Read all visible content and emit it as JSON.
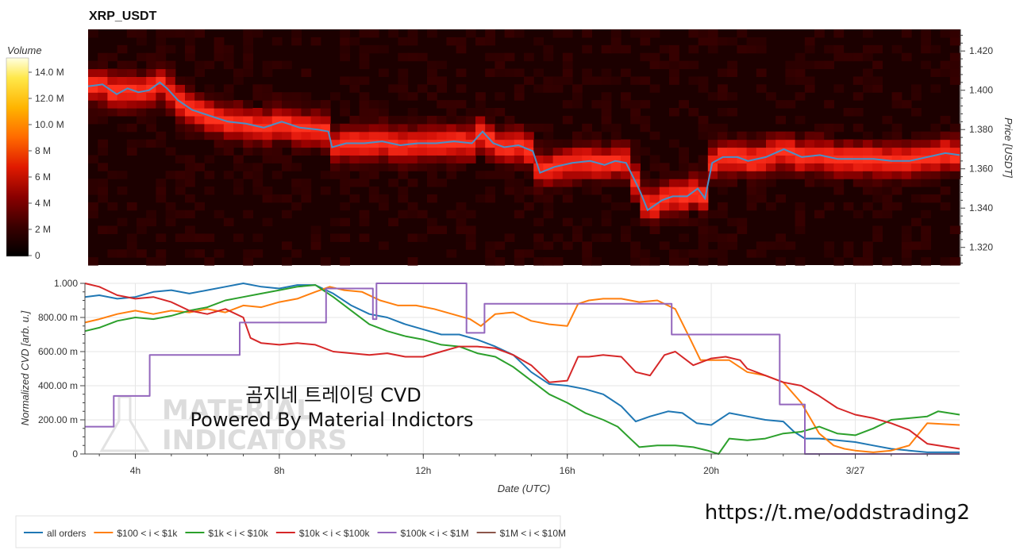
{
  "colors": {
    "price_line": "#4a90c8",
    "all_orders": "#1f77b4",
    "s100_1k": "#ff7f0e",
    "s1k_10k": "#2ca02c",
    "s10k_100k": "#d62728",
    "s100k_1M": "#9467bd",
    "s1M_10M": "#8c564b"
  },
  "chart_data": [
    {
      "type": "heatmap",
      "title": "XRP_USDT",
      "ylabel": "Price [USDT]",
      "ylim": [
        1.311,
        1.431
      ],
      "y_ticks": [
        "1.420",
        "1.400",
        "1.380",
        "1.360",
        "1.340",
        "1.320"
      ],
      "colorbar": {
        "title": "Volume",
        "range": [
          0,
          15000000
        ],
        "ticks": [
          "14.0 M",
          "12.0 M",
          "10.0 M",
          "8 M",
          "6 M",
          "4 M",
          "2 M",
          "0"
        ]
      },
      "price_series": {
        "hours": [
          2.6,
          3.0,
          3.4,
          3.7,
          4.0,
          4.3,
          4.6,
          4.8,
          5.1,
          5.5,
          6.0,
          6.5,
          7.0,
          7.5,
          8.0,
          8.5,
          9.0,
          9.3,
          9.4,
          9.8,
          10.3,
          10.8,
          11.3,
          11.8,
          12.3,
          12.8,
          13.3,
          13.6,
          13.9,
          14.2,
          14.6,
          15.0,
          15.2,
          15.6,
          16.1,
          16.6,
          17.0,
          17.3,
          17.6,
          17.9,
          18.0,
          18.2,
          18.6,
          18.9,
          19.3,
          19.6,
          19.8,
          20.0,
          20.3,
          20.7,
          21.0,
          21.5,
          22.0,
          22.5,
          23.0,
          23.5,
          24.0,
          24.5,
          25.0,
          25.5,
          26.0,
          26.5,
          26.9
        ],
        "price": [
          1.402,
          1.403,
          1.398,
          1.401,
          1.399,
          1.4,
          1.404,
          1.401,
          1.395,
          1.39,
          1.387,
          1.384,
          1.383,
          1.381,
          1.384,
          1.381,
          1.38,
          1.379,
          1.371,
          1.373,
          1.373,
          1.374,
          1.372,
          1.373,
          1.373,
          1.374,
          1.373,
          1.379,
          1.373,
          1.371,
          1.372,
          1.369,
          1.358,
          1.361,
          1.363,
          1.364,
          1.362,
          1.364,
          1.363,
          1.352,
          1.348,
          1.339,
          1.344,
          1.346,
          1.346,
          1.35,
          1.345,
          1.363,
          1.366,
          1.366,
          1.364,
          1.366,
          1.37,
          1.366,
          1.367,
          1.365,
          1.365,
          1.365,
          1.364,
          1.364,
          1.366,
          1.368,
          1.367
        ]
      }
    },
    {
      "type": "line",
      "xlabel": "Date (UTC)",
      "ylabel": "Normalized CVD [arb. u.]",
      "xlim": [
        2.6,
        26.9
      ],
      "ylim": [
        0,
        1
      ],
      "x_ticks": [
        {
          "value": 4,
          "label": "4h"
        },
        {
          "value": 8,
          "label": "8h"
        },
        {
          "value": 12,
          "label": "12h"
        },
        {
          "value": 16,
          "label": "16h"
        },
        {
          "value": 20,
          "label": "20h"
        },
        {
          "value": 24,
          "label": "3/27"
        }
      ],
      "y_ticks": [
        {
          "value": 1.0,
          "label": "1.000"
        },
        {
          "value": 0.8,
          "label": "800.00 m"
        },
        {
          "value": 0.6,
          "label": "600.00 m"
        },
        {
          "value": 0.4,
          "label": "400.00 m"
        },
        {
          "value": 0.2,
          "label": "200.00 m"
        },
        {
          "value": 0.0,
          "label": "0"
        }
      ],
      "series": [
        {
          "name": "all orders",
          "color_key": "all_orders",
          "x": [
            2.6,
            3.0,
            3.5,
            4.0,
            4.5,
            5.0,
            5.5,
            6.0,
            6.5,
            7.0,
            7.5,
            8.0,
            8.5,
            9.0,
            9.5,
            10.0,
            10.5,
            11.0,
            11.5,
            12.0,
            12.5,
            13.0,
            13.5,
            14.0,
            14.5,
            15.0,
            15.5,
            16.0,
            16.5,
            17.0,
            17.5,
            17.9,
            18.3,
            18.8,
            19.2,
            19.6,
            20.0,
            20.5,
            21.0,
            21.5,
            22.0,
            22.3,
            22.6,
            23.0,
            23.5,
            24.0,
            24.5,
            25.0,
            25.5,
            26.0,
            26.9
          ],
          "y": [
            0.92,
            0.93,
            0.91,
            0.92,
            0.95,
            0.96,
            0.94,
            0.96,
            0.98,
            1.0,
            0.98,
            0.97,
            0.99,
            0.99,
            0.94,
            0.87,
            0.82,
            0.8,
            0.76,
            0.73,
            0.7,
            0.7,
            0.67,
            0.63,
            0.58,
            0.48,
            0.41,
            0.4,
            0.38,
            0.35,
            0.28,
            0.19,
            0.22,
            0.25,
            0.24,
            0.18,
            0.17,
            0.24,
            0.22,
            0.2,
            0.19,
            0.13,
            0.09,
            0.09,
            0.08,
            0.07,
            0.05,
            0.03,
            0.02,
            0.01,
            0.01
          ]
        },
        {
          "name": "$100 < i < $1k",
          "color_key": "s100_1k",
          "x": [
            2.6,
            3.0,
            3.5,
            4.0,
            4.5,
            5.0,
            5.5,
            6.0,
            6.5,
            7.0,
            7.5,
            8.0,
            8.5,
            9.0,
            9.4,
            9.8,
            10.3,
            10.8,
            11.3,
            11.8,
            12.3,
            12.8,
            13.3,
            13.6,
            14.0,
            14.5,
            15.0,
            15.5,
            16.0,
            16.3,
            16.6,
            17.0,
            17.5,
            18.0,
            18.5,
            19.0,
            19.4,
            19.7,
            20.0,
            20.5,
            21.0,
            21.5,
            22.0,
            22.5,
            23.0,
            23.4,
            23.7,
            24.0,
            24.5,
            25.0,
            25.5,
            26.0,
            26.9
          ],
          "y": [
            0.77,
            0.79,
            0.82,
            0.84,
            0.82,
            0.84,
            0.83,
            0.85,
            0.83,
            0.87,
            0.86,
            0.89,
            0.91,
            0.95,
            0.98,
            0.96,
            0.95,
            0.9,
            0.87,
            0.87,
            0.85,
            0.82,
            0.79,
            0.75,
            0.82,
            0.83,
            0.78,
            0.76,
            0.75,
            0.88,
            0.9,
            0.91,
            0.91,
            0.89,
            0.9,
            0.85,
            0.68,
            0.55,
            0.55,
            0.55,
            0.48,
            0.46,
            0.42,
            0.3,
            0.12,
            0.05,
            0.03,
            0.02,
            0.01,
            0.02,
            0.05,
            0.18,
            0.17
          ]
        },
        {
          "name": "$1k < i < $10k",
          "color_key": "s1k_10k",
          "x": [
            2.6,
            3.0,
            3.5,
            4.0,
            4.5,
            5.0,
            5.5,
            6.0,
            6.5,
            7.0,
            7.5,
            8.0,
            8.5,
            9.0,
            9.5,
            10.0,
            10.5,
            11.0,
            11.5,
            12.0,
            12.5,
            13.0,
            13.5,
            14.0,
            14.5,
            15.0,
            15.5,
            16.0,
            16.5,
            17.0,
            17.4,
            17.8,
            18.0,
            18.5,
            19.0,
            19.5,
            19.9,
            20.2,
            20.5,
            21.0,
            21.5,
            22.0,
            22.5,
            23.0,
            23.5,
            24.0,
            24.5,
            25.0,
            25.5,
            26.0,
            26.3,
            26.9
          ],
          "y": [
            0.72,
            0.74,
            0.78,
            0.8,
            0.79,
            0.81,
            0.84,
            0.86,
            0.9,
            0.92,
            0.94,
            0.96,
            0.98,
            0.99,
            0.92,
            0.84,
            0.76,
            0.72,
            0.69,
            0.67,
            0.64,
            0.63,
            0.59,
            0.57,
            0.51,
            0.43,
            0.35,
            0.3,
            0.24,
            0.2,
            0.16,
            0.08,
            0.04,
            0.05,
            0.05,
            0.04,
            0.02,
            0.0,
            0.09,
            0.08,
            0.09,
            0.12,
            0.13,
            0.16,
            0.12,
            0.11,
            0.15,
            0.2,
            0.21,
            0.22,
            0.25,
            0.23
          ]
        },
        {
          "name": "$10k < i < $100k",
          "color_key": "s10k_100k",
          "x": [
            2.6,
            3.0,
            3.5,
            4.0,
            4.5,
            5.0,
            5.5,
            6.0,
            6.5,
            7.0,
            7.2,
            7.5,
            8.0,
            8.5,
            9.0,
            9.5,
            10.0,
            10.5,
            11.0,
            11.5,
            12.0,
            12.5,
            13.0,
            13.5,
            14.0,
            14.5,
            15.0,
            15.5,
            16.0,
            16.3,
            16.6,
            17.0,
            17.5,
            17.9,
            18.3,
            18.7,
            19.0,
            19.5,
            20.0,
            20.4,
            20.8,
            21.0,
            21.5,
            22.0,
            22.5,
            23.0,
            23.5,
            24.0,
            24.5,
            25.0,
            25.5,
            26.0,
            26.9
          ],
          "y": [
            1.0,
            0.98,
            0.93,
            0.91,
            0.92,
            0.89,
            0.84,
            0.82,
            0.85,
            0.8,
            0.68,
            0.65,
            0.64,
            0.65,
            0.64,
            0.6,
            0.59,
            0.58,
            0.59,
            0.57,
            0.57,
            0.6,
            0.63,
            0.63,
            0.62,
            0.58,
            0.52,
            0.42,
            0.43,
            0.57,
            0.57,
            0.58,
            0.57,
            0.48,
            0.46,
            0.58,
            0.6,
            0.52,
            0.56,
            0.57,
            0.55,
            0.5,
            0.46,
            0.42,
            0.4,
            0.34,
            0.27,
            0.23,
            0.21,
            0.18,
            0.14,
            0.06,
            0.03
          ]
        },
        {
          "name": "$100k < i < $1M",
          "color_key": "s100k_1M",
          "x": [
            2.6,
            3.4,
            3.4,
            4.4,
            4.4,
            6.9,
            6.9,
            9.3,
            9.3,
            10.6,
            10.6,
            10.7,
            10.7,
            13.2,
            13.2,
            13.7,
            13.7,
            18.9,
            18.9,
            21.2,
            21.2,
            21.9,
            21.9,
            22.6,
            22.6,
            26.9
          ],
          "y": [
            0.16,
            0.16,
            0.34,
            0.34,
            0.58,
            0.58,
            0.77,
            0.77,
            0.97,
            0.97,
            0.79,
            0.79,
            1.0,
            1.0,
            0.71,
            0.71,
            0.88,
            0.88,
            0.7,
            0.7,
            0.7,
            0.7,
            0.29,
            0.29,
            0.0,
            0.0
          ]
        },
        {
          "name": "$1M < i < $10M",
          "color_key": "s1M_10M",
          "x": [],
          "y": []
        }
      ],
      "legend_position": "bottom-left"
    }
  ],
  "overlay": {
    "caption_line1": "곰지네 트레이딩 CVD",
    "caption_line2": "Powered By Material Indictors",
    "logo_line1": "MATERIAL",
    "logo_line2": "INDICATORS",
    "url": "https://t.me/oddstrading2"
  }
}
